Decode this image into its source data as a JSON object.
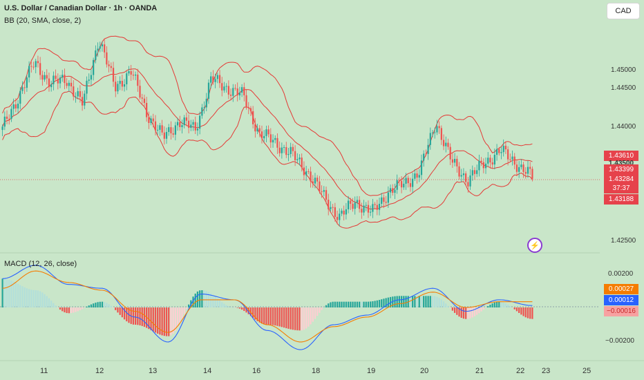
{
  "header": {
    "title": "U.S. Dollar / Canadian Dollar · 1h · OANDA",
    "bb_label": "BB (20, SMA, close, 2)",
    "macd_label": "MACD (12, 26, close)"
  },
  "currency_button": "CAD",
  "price_axis": {
    "ticks": [
      "1.45000",
      "1.44500",
      "1.44000",
      "1.42500"
    ],
    "tags": [
      {
        "label": "1.43610",
        "value": 1.4361,
        "color": "#e6424b"
      },
      {
        "label": "1.43399",
        "value": 1.43399,
        "color": "#e6424b"
      },
      {
        "label": "1.43284",
        "value": 1.43284,
        "color": "#e6424b"
      },
      {
        "label": "1.43188",
        "value": 1.43188,
        "color": "#e6424b"
      }
    ],
    "partial_tick": "1.43500",
    "timer": "37:37"
  },
  "macd_axis": {
    "ticks": [
      "0.00200",
      "−0.00200"
    ],
    "tags": [
      {
        "label": "0.00027",
        "value": 0.00027,
        "color": "#f57c00"
      },
      {
        "label": "0.00012",
        "value": 0.00012,
        "color": "#2962ff"
      },
      {
        "label": "−0.00016",
        "value": -0.00016,
        "color": "#f7a1a1"
      }
    ]
  },
  "time_axis": {
    "labels": [
      "11",
      "12",
      "13",
      "14",
      "16",
      "18",
      "19",
      "20",
      "21",
      "22",
      "23",
      "25"
    ]
  },
  "colors": {
    "background": "#c9e6c9",
    "up": "#26a69a",
    "down": "#ef5350",
    "band": "#e53935",
    "macd_line": "#2962ff",
    "signal_line": "#f57c00"
  },
  "chart_data": [
    {
      "type": "candlestick",
      "title": "U.S. Dollar / Canadian Dollar · 1h · OANDA",
      "ylim": [
        1.4236,
        1.4525
      ],
      "x_ticks": [
        "11",
        "12",
        "13",
        "14",
        "16",
        "18",
        "19",
        "20",
        "21",
        "22",
        "23",
        "25"
      ],
      "close_path": [
        [
          "10",
          1.4385
        ],
        [
          "10.5",
          1.4425
        ],
        [
          "11",
          1.4465
        ],
        [
          "11",
          1.444
        ],
        [
          "11.5",
          1.4445
        ],
        [
          "11.5",
          1.4415
        ],
        [
          "12",
          1.4495
        ],
        [
          "12",
          1.4435
        ],
        [
          "12.5",
          1.4455
        ],
        [
          "12.5",
          1.4405
        ],
        [
          "13",
          1.4375
        ],
        [
          "13",
          1.4395
        ],
        [
          "13.5",
          1.4385
        ],
        [
          "14",
          1.4445
        ],
        [
          "14",
          1.4435
        ],
        [
          "15",
          1.4425
        ],
        [
          "15.5",
          1.438
        ],
        [
          "16",
          1.437
        ],
        [
          "16.5",
          1.4355
        ],
        [
          "17",
          1.4335
        ],
        [
          "17",
          1.4305
        ],
        [
          "17.5",
          1.428
        ],
        [
          "18",
          1.43
        ],
        [
          "18.5",
          1.4285
        ],
        [
          "19",
          1.431
        ],
        [
          "19.5",
          1.432
        ],
        [
          "20",
          1.4335
        ],
        [
          "20",
          1.4395
        ],
        [
          "20.5",
          1.4345
        ],
        [
          "21",
          1.4325
        ],
        [
          "21.5",
          1.4345
        ],
        [
          "22",
          1.436
        ],
        [
          "22.5",
          1.4345
        ],
        [
          "23",
          1.4328
        ]
      ],
      "bollinger": {
        "period": 20,
        "ma": "SMA",
        "source": "close",
        "mult": 2
      },
      "last_price": 1.43284
    },
    {
      "type": "line",
      "title": "MACD (12, 26, close)",
      "ylim": [
        -0.0027,
        0.0027
      ],
      "series": [
        {
          "name": "MACD",
          "values": [
            0.0015,
            0.0022,
            0.0012,
            0.001,
            -0.0005,
            -0.0018,
            0.0007,
            0.0004,
            -0.0012,
            -0.0022,
            -0.0009,
            -0.0004,
            0.0004,
            0.001,
            -0.0002,
            0.0004,
            0.0001
          ]
        },
        {
          "name": "Signal",
          "values": [
            0.001,
            0.0019,
            0.0013,
            0.0009,
            -0.0002,
            -0.0013,
            0.0004,
            0.0004,
            -0.0009,
            -0.0018,
            -0.001,
            -0.0005,
            0.0002,
            0.0008,
            0.0,
            0.0003,
            0.0003
          ]
        }
      ],
      "last_values": {
        "macd": 0.00012,
        "signal": 0.00027,
        "histogram": -0.00016
      }
    }
  ]
}
